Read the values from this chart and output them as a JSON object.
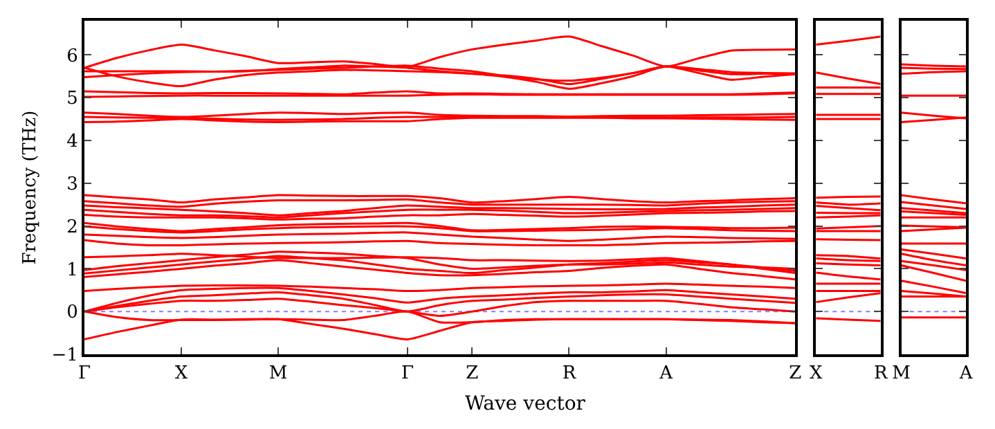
{
  "chart_data": [
    {
      "type": "line",
      "xlabel": "Wave vector",
      "ylabel": "Frequency (THz)",
      "categories": [
        "Γ",
        null,
        null,
        "X",
        null,
        null,
        "M",
        null,
        null,
        null,
        "Γ",
        null,
        "Z",
        null,
        null,
        "R",
        null,
        null,
        "A",
        null,
        null,
        null,
        "Z"
      ],
      "ylim": [
        -1,
        6.8
      ],
      "yticks": [
        -1,
        0,
        1,
        2,
        3,
        4,
        5,
        6
      ],
      "ref_lines": [
        {
          "axis": "y",
          "value": 0,
          "color": "#7f7fff",
          "line_style": "dotted"
        }
      ],
      "series": [
        {
          "color": "#ff0000",
          "values": [
            5.7,
            5.93,
            6.11,
            6.24,
            6.11,
            5.97,
            5.81,
            5.83,
            5.85,
            5.79,
            5.72,
            5.95,
            6.13,
            6.24,
            6.34,
            6.43,
            6.21,
            5.98,
            5.73,
            5.92,
            6.1,
            6.12,
            6.13
          ]
        },
        {
          "color": "#ff0000",
          "values": [
            5.62,
            5.62,
            5.62,
            5.62,
            5.61,
            5.62,
            5.67,
            5.71,
            5.75,
            5.73,
            5.7,
            5.62,
            5.56,
            5.52,
            5.44,
            5.32,
            5.44,
            5.58,
            5.73,
            5.67,
            5.6,
            5.58,
            5.57
          ]
        },
        {
          "color": "#ff0000",
          "values": [
            5.7,
            5.5,
            5.36,
            5.27,
            5.42,
            5.53,
            5.59,
            5.62,
            5.65,
            5.64,
            5.62,
            5.6,
            5.56,
            5.49,
            5.37,
            5.21,
            5.34,
            5.51,
            5.73,
            5.58,
            5.42,
            5.49,
            5.55
          ]
        },
        {
          "color": "#ff0000",
          "values": [
            5.48,
            5.53,
            5.57,
            5.6,
            5.61,
            5.63,
            5.65,
            5.68,
            5.7,
            5.73,
            5.75,
            5.68,
            5.62,
            5.51,
            5.43,
            5.4,
            5.47,
            5.58,
            5.73,
            5.64,
            5.55,
            5.56,
            5.56
          ]
        },
        {
          "color": "#ff0000",
          "values": [
            5.15,
            5.13,
            5.11,
            5.1,
            5.11,
            5.11,
            5.1,
            5.09,
            5.08,
            5.12,
            5.15,
            5.1,
            5.1,
            5.09,
            5.08,
            5.08,
            5.08,
            5.08,
            5.08,
            5.08,
            5.08,
            5.1,
            5.12
          ]
        },
        {
          "color": "#ff0000",
          "values": [
            5.02,
            5.03,
            5.04,
            5.05,
            5.05,
            5.05,
            5.05,
            5.05,
            5.05,
            5.05,
            5.05,
            5.07,
            5.08,
            5.07,
            5.07,
            5.07,
            5.07,
            5.07,
            5.07,
            5.07,
            5.07,
            5.08,
            5.1
          ]
        },
        {
          "color": "#ff0000",
          "values": [
            4.65,
            4.62,
            4.58,
            4.55,
            4.58,
            4.62,
            4.65,
            4.64,
            4.62,
            4.64,
            4.65,
            4.6,
            4.58,
            4.57,
            4.57,
            4.56,
            4.57,
            4.58,
            4.58,
            4.59,
            4.6,
            4.61,
            4.62
          ]
        },
        {
          "color": "#ff0000",
          "values": [
            4.55,
            4.54,
            4.53,
            4.52,
            4.51,
            4.49,
            4.48,
            4.49,
            4.5,
            4.53,
            4.55,
            4.55,
            4.55,
            4.55,
            4.55,
            4.55,
            4.55,
            4.55,
            4.54,
            4.54,
            4.54,
            4.54,
            4.55
          ]
        },
        {
          "color": "#ff0000",
          "values": [
            4.43,
            4.44,
            4.47,
            4.5,
            4.47,
            4.44,
            4.43,
            4.44,
            4.45,
            4.45,
            4.45,
            4.5,
            4.53,
            4.53,
            4.53,
            4.53,
            4.53,
            4.52,
            4.52,
            4.51,
            4.5,
            4.49,
            4.48
          ]
        },
        {
          "color": "#ff0000",
          "values": [
            2.72,
            2.67,
            2.62,
            2.55,
            2.62,
            2.67,
            2.72,
            2.71,
            2.7,
            2.7,
            2.7,
            2.65,
            2.55,
            2.58,
            2.63,
            2.68,
            2.63,
            2.58,
            2.55,
            2.58,
            2.6,
            2.63,
            2.65
          ]
        },
        {
          "color": "#ff0000",
          "values": [
            2.58,
            2.53,
            2.48,
            2.45,
            2.52,
            2.57,
            2.6,
            2.6,
            2.6,
            2.61,
            2.62,
            2.55,
            2.5,
            2.5,
            2.5,
            2.5,
            2.5,
            2.49,
            2.48,
            2.52,
            2.55,
            2.57,
            2.58
          ]
        },
        {
          "color": "#ff0000",
          "values": [
            2.48,
            2.44,
            2.41,
            2.38,
            2.34,
            2.3,
            2.25,
            2.3,
            2.35,
            2.42,
            2.48,
            2.45,
            2.42,
            2.42,
            2.41,
            2.4,
            2.39,
            2.39,
            2.4,
            2.43,
            2.45,
            2.48,
            2.5
          ]
        },
        {
          "color": "#ff0000",
          "values": [
            2.38,
            2.33,
            2.28,
            2.25,
            2.25,
            2.23,
            2.2,
            2.25,
            2.3,
            2.34,
            2.38,
            2.38,
            2.38,
            2.36,
            2.33,
            2.3,
            2.31,
            2.33,
            2.35,
            2.37,
            2.38,
            2.4,
            2.42
          ]
        },
        {
          "color": "#ff0000",
          "values": [
            2.26,
            2.22,
            2.2,
            2.2,
            2.2,
            2.18,
            2.15,
            2.17,
            2.18,
            2.22,
            2.25,
            2.25,
            2.28,
            2.26,
            2.24,
            2.22,
            2.24,
            2.27,
            2.3,
            2.31,
            2.32,
            2.34,
            2.35
          ]
        },
        {
          "color": "#ff0000",
          "values": [
            2.07,
            1.99,
            1.93,
            1.88,
            1.93,
            1.97,
            2.02,
            2.04,
            2.05,
            2.06,
            2.07,
            2.0,
            1.9,
            1.91,
            1.93,
            1.95,
            1.98,
            1.99,
            1.98,
            1.97,
            1.95,
            1.95,
            1.96
          ]
        },
        {
          "color": "#ff0000",
          "values": [
            1.99,
            1.93,
            1.88,
            1.85,
            1.88,
            1.92,
            1.95,
            1.97,
            1.98,
            1.99,
            1.99,
            1.95,
            1.88,
            1.88,
            1.89,
            1.9,
            1.91,
            1.93,
            1.95,
            1.93,
            1.9,
            1.89,
            1.88
          ]
        },
        {
          "color": "#ff0000",
          "values": [
            1.8,
            1.77,
            1.74,
            1.72,
            1.74,
            1.77,
            1.8,
            1.81,
            1.82,
            1.84,
            1.85,
            1.8,
            1.75,
            1.72,
            1.68,
            1.65,
            1.68,
            1.72,
            1.75,
            1.74,
            1.72,
            1.71,
            1.7
          ]
        },
        {
          "color": "#ff0000",
          "values": [
            1.67,
            1.59,
            1.55,
            1.55,
            1.57,
            1.59,
            1.6,
            1.61,
            1.62,
            1.64,
            1.65,
            1.6,
            1.58,
            1.56,
            1.55,
            1.55,
            1.55,
            1.57,
            1.6,
            1.61,
            1.62,
            1.64,
            1.65
          ]
        },
        {
          "color": "#ff0000",
          "values": [
            1.27,
            1.29,
            1.32,
            1.35,
            1.32,
            1.28,
            1.25,
            1.25,
            1.25,
            1.26,
            1.27,
            1.25,
            1.2,
            1.2,
            1.19,
            1.18,
            1.19,
            1.22,
            1.25,
            1.18,
            1.1,
            1.03,
            0.95
          ]
        },
        {
          "color": "#ff0000",
          "values": [
            0.97,
            1.06,
            1.13,
            1.2,
            1.27,
            1.33,
            1.4,
            1.38,
            1.35,
            1.3,
            1.25,
            1.1,
            1.0,
            1.03,
            1.07,
            1.1,
            1.1,
            1.12,
            1.15,
            1.1,
            1.05,
            1.03,
            1.0
          ]
        },
        {
          "color": "#ff0000",
          "values": [
            0.89,
            0.96,
            1.03,
            1.1,
            1.17,
            1.23,
            1.3,
            1.25,
            1.2,
            1.1,
            1.0,
            0.95,
            0.9,
            0.97,
            1.03,
            1.1,
            1.13,
            1.17,
            1.2,
            1.15,
            1.1,
            1.0,
            0.9
          ]
        },
        {
          "color": "#ff0000",
          "values": [
            0.81,
            0.87,
            0.93,
            1.0,
            1.07,
            1.13,
            1.2,
            1.13,
            1.05,
            0.98,
            0.9,
            0.85,
            0.85,
            0.88,
            0.92,
            0.95,
            1.02,
            1.07,
            1.1,
            1.0,
            0.9,
            0.83,
            0.75
          ]
        },
        {
          "color": "#ff0000",
          "values": [
            0.48,
            0.53,
            0.57,
            0.6,
            0.61,
            0.61,
            0.6,
            0.58,
            0.55,
            0.52,
            0.48,
            0.5,
            0.55,
            0.57,
            0.59,
            0.6,
            0.61,
            0.63,
            0.65,
            0.63,
            0.6,
            0.58,
            0.55
          ]
        },
        {
          "color": "#ff0000",
          "values": [
            0,
            0.2,
            0.37,
            0.5,
            0.53,
            0.55,
            0.55,
            0.48,
            0.4,
            0.31,
            0.21,
            0.3,
            0.35,
            0.38,
            0.42,
            0.45,
            0.45,
            0.47,
            0.5,
            0.45,
            0.4,
            0.35,
            0.3
          ]
        },
        {
          "color": "#ff0000",
          "values": [
            0,
            0.13,
            0.25,
            0.35,
            0.38,
            0.42,
            0.45,
            0.38,
            0.3,
            0.15,
            0,
            0.15,
            0.25,
            0.28,
            0.32,
            0.35,
            0.38,
            0.4,
            0.4,
            0.35,
            0.3,
            0.25,
            0.2
          ]
        },
        {
          "color": "#ff0000",
          "values": [
            0,
            0.1,
            0.18,
            0.25,
            0.25,
            0.27,
            0.3,
            0.23,
            0.15,
            0.08,
            0,
            -0.1,
            0,
            0.13,
            0.22,
            0.25,
            0.25,
            0.25,
            0.25,
            0.18,
            0.1,
            0.05,
            0
          ]
        },
        {
          "color": "#ff0000",
          "values": [
            0,
            -0.13,
            -0.2,
            -0.2,
            -0.2,
            -0.19,
            -0.18,
            -0.19,
            -0.2,
            -0.1,
            0,
            -0.25,
            -0.25,
            -0.2,
            -0.18,
            -0.18,
            -0.18,
            -0.18,
            -0.18,
            -0.19,
            -0.2,
            -0.23,
            -0.27
          ]
        },
        {
          "color": "#ff0000",
          "values": [
            -0.65,
            -0.48,
            -0.33,
            -0.19,
            -0.19,
            -0.18,
            -0.18,
            -0.29,
            -0.4,
            -0.53,
            -0.65,
            -0.45,
            -0.25,
            -0.22,
            -0.19,
            -0.18,
            -0.18,
            -0.18,
            -0.18,
            -0.2,
            -0.22,
            -0.25,
            -0.27
          ]
        }
      ]
    },
    {
      "type": "line",
      "categories": [
        "X",
        null,
        "R"
      ],
      "ylim": [
        -1,
        6.8
      ],
      "yticks": [
        -1,
        0,
        1,
        2,
        3,
        4,
        5,
        6
      ],
      "tick_labels": "x",
      "ref_lines": [
        {
          "axis": "y",
          "value": 0,
          "color": "#7f7fff",
          "line_style": "dotted"
        }
      ],
      "series": [
        {
          "color": "#ff0000",
          "values": [
            6.24,
            6.33,
            6.43
          ]
        },
        {
          "color": "#ff0000",
          "values": [
            5.59,
            5.45,
            5.32
          ]
        },
        {
          "color": "#ff0000",
          "values": [
            5.24,
            5.24,
            5.24
          ]
        },
        {
          "color": "#ff0000",
          "values": [
            5.09,
            5.09,
            5.09
          ]
        },
        {
          "color": "#ff0000",
          "values": [
            4.6,
            4.6,
            4.6
          ]
        },
        {
          "color": "#ff0000",
          "values": [
            4.5,
            4.5,
            4.5
          ]
        },
        {
          "color": "#ff0000",
          "values": [
            2.66,
            2.68,
            2.69
          ]
        },
        {
          "color": "#ff0000",
          "values": [
            2.55,
            2.5,
            2.53
          ]
        },
        {
          "color": "#ff0000",
          "values": [
            2.47,
            2.42,
            2.37
          ]
        },
        {
          "color": "#ff0000",
          "values": [
            2.31,
            2.3,
            2.3
          ]
        },
        {
          "color": "#ff0000",
          "values": [
            2.2,
            2.22,
            2.25
          ]
        },
        {
          "color": "#ff0000",
          "values": [
            1.94,
            1.97,
            2.0
          ]
        },
        {
          "color": "#ff0000",
          "values": [
            1.88,
            1.88,
            1.88
          ]
        },
        {
          "color": "#ff0000",
          "values": [
            1.69,
            1.68,
            1.67
          ]
        },
        {
          "color": "#ff0000",
          "values": [
            1.32,
            1.3,
            1.24
          ]
        },
        {
          "color": "#ff0000",
          "values": [
            1.24,
            1.2,
            1.18
          ]
        },
        {
          "color": "#ff0000",
          "values": [
            1.13,
            1.1,
            1.08
          ]
        },
        {
          "color": "#ff0000",
          "values": [
            0.91,
            0.82,
            0.75
          ]
        },
        {
          "color": "#ff0000",
          "values": [
            0.65,
            0.65,
            0.65
          ]
        },
        {
          "color": "#ff0000",
          "values": [
            0.48,
            0.48,
            0.48
          ]
        },
        {
          "color": "#ff0000",
          "values": [
            0.22,
            0.33,
            0.43
          ]
        },
        {
          "color": "#ff0000",
          "values": [
            -0.16,
            -0.19,
            -0.22
          ]
        }
      ]
    },
    {
      "type": "line",
      "categories": [
        "M",
        null,
        "A"
      ],
      "ylim": [
        -1,
        6.8
      ],
      "yticks": [
        -1,
        0,
        1,
        2,
        3,
        4,
        5,
        6
      ],
      "tick_labels": "x",
      "ref_lines": [
        {
          "axis": "y",
          "value": 0,
          "color": "#7f7fff",
          "line_style": "dotted"
        }
      ],
      "series": [
        {
          "color": "#ff0000",
          "values": [
            5.78,
            5.75,
            5.73
          ]
        },
        {
          "color": "#ff0000",
          "values": [
            5.7,
            5.68,
            5.67
          ]
        },
        {
          "color": "#ff0000",
          "values": [
            5.56,
            5.6,
            5.62
          ]
        },
        {
          "color": "#ff0000",
          "values": [
            5.05,
            5.05,
            5.05
          ]
        },
        {
          "color": "#ff0000",
          "values": [
            4.65,
            4.58,
            4.52
          ]
        },
        {
          "color": "#ff0000",
          "values": [
            4.43,
            4.48,
            4.54
          ]
        },
        {
          "color": "#ff0000",
          "values": [
            2.72,
            2.62,
            2.53
          ]
        },
        {
          "color": "#ff0000",
          "values": [
            2.56,
            2.48,
            2.4
          ]
        },
        {
          "color": "#ff0000",
          "values": [
            2.42,
            2.36,
            2.3
          ]
        },
        {
          "color": "#ff0000",
          "values": [
            2.34,
            2.3,
            2.26
          ]
        },
        {
          "color": "#ff0000",
          "values": [
            2.2,
            2.2,
            2.2
          ]
        },
        {
          "color": "#ff0000",
          "values": [
            2.01,
            1.99,
            1.97
          ]
        },
        {
          "color": "#ff0000",
          "values": [
            1.88,
            1.92,
            1.96
          ]
        },
        {
          "color": "#ff0000",
          "values": [
            1.59,
            1.59,
            1.59
          ]
        },
        {
          "color": "#ff0000",
          "values": [
            1.45,
            1.35,
            1.24
          ]
        },
        {
          "color": "#ff0000",
          "values": [
            1.35,
            1.2,
            1.08
          ]
        },
        {
          "color": "#ff0000",
          "values": [
            1.18,
            1.08,
            0.97
          ]
        },
        {
          "color": "#ff0000",
          "values": [
            1.08,
            0.9,
            0.72
          ]
        },
        {
          "color": "#ff0000",
          "values": [
            0.72,
            0.58,
            0.43
          ]
        },
        {
          "color": "#ff0000",
          "values": [
            0.48,
            0.42,
            0.35
          ]
        },
        {
          "color": "#ff0000",
          "values": [
            0.35,
            0.35,
            0.35
          ]
        },
        {
          "color": "#ff0000",
          "values": [
            -0.14,
            -0.14,
            -0.14
          ]
        }
      ]
    }
  ]
}
